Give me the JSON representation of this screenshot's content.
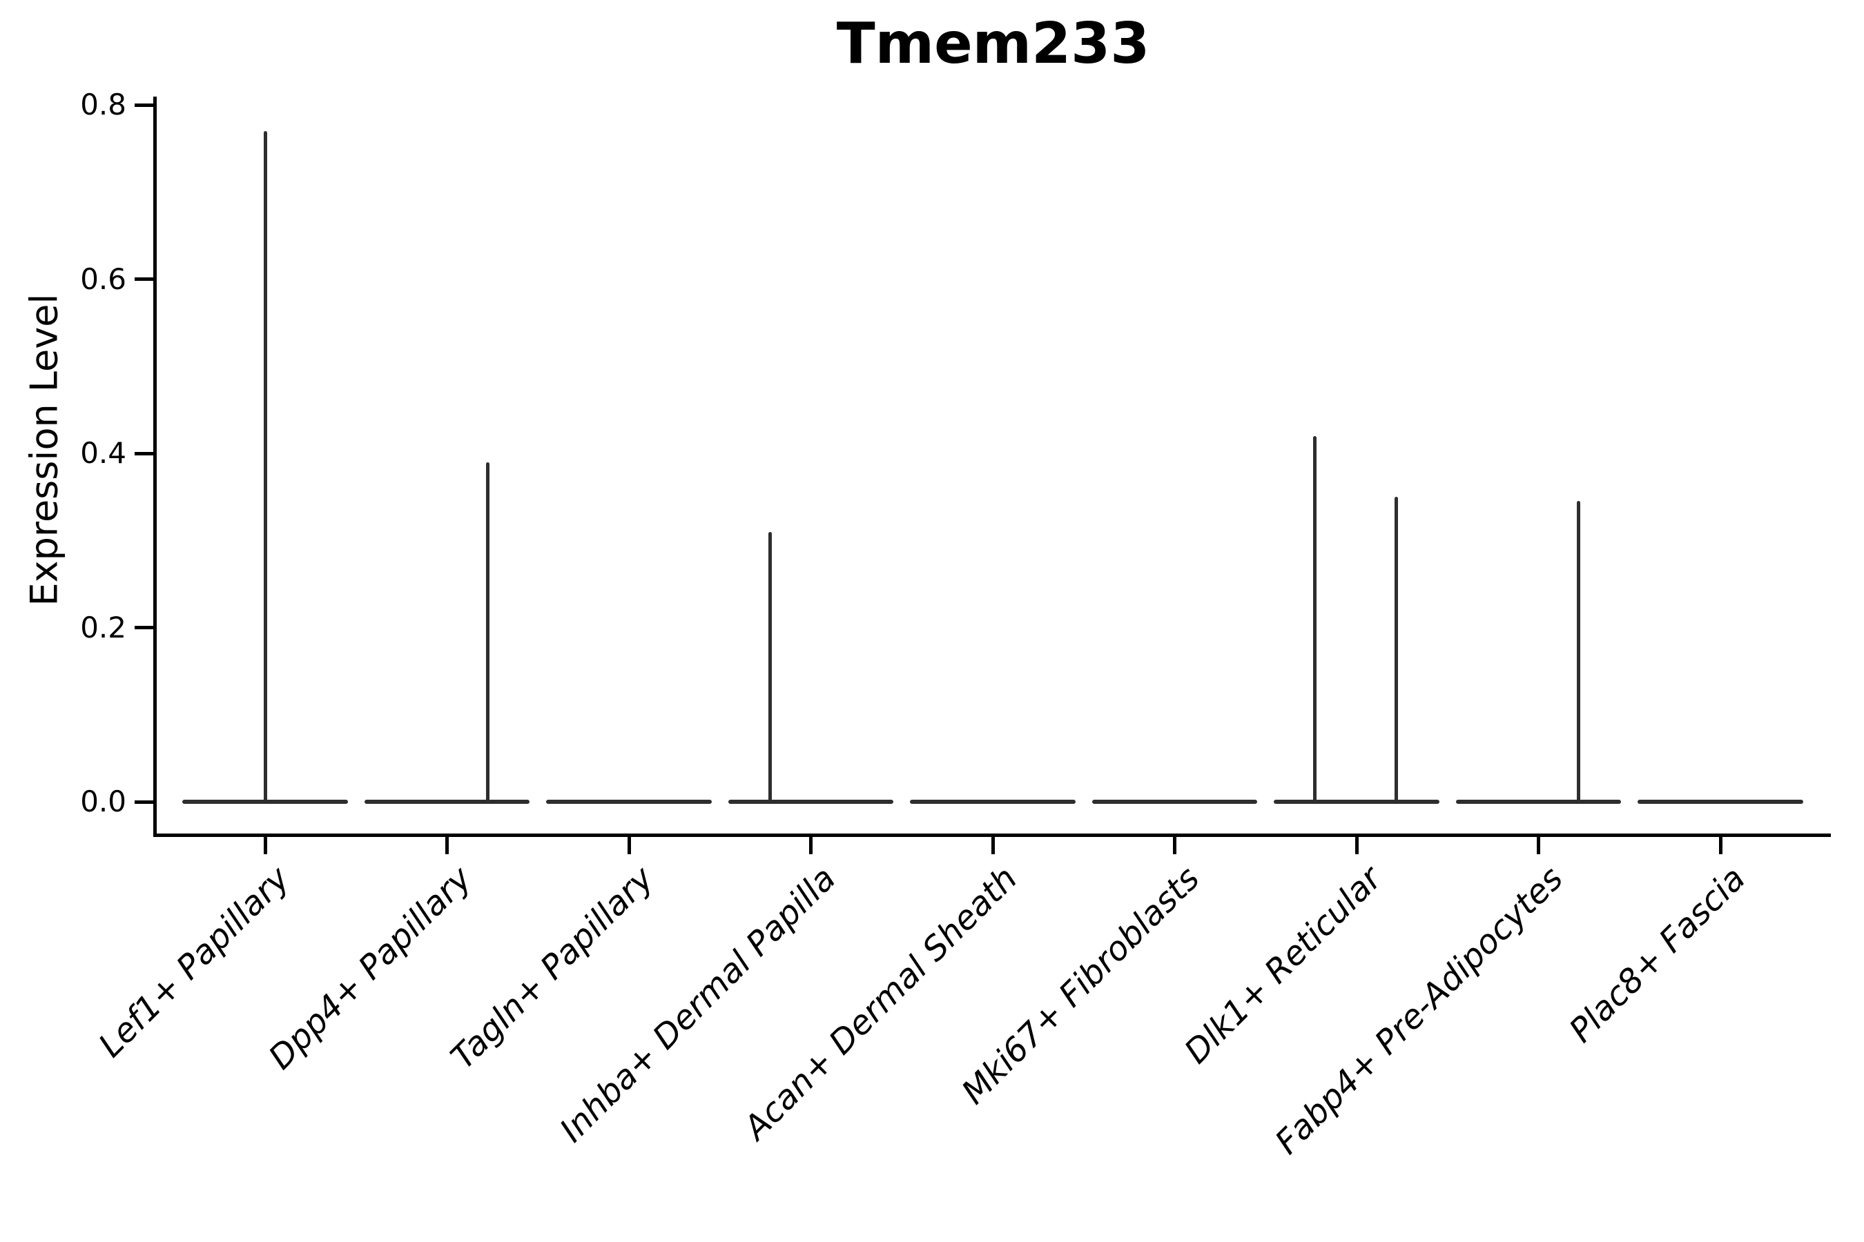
{
  "title": "Tmem233",
  "colors": {
    "violin_stroke": "#2e2e2e",
    "axis": "#000000",
    "text": "#000000",
    "background": "#ffffff"
  },
  "chart_data": {
    "type": "violin",
    "title": "Tmem233",
    "xlabel": "",
    "ylabel": "Expression Level",
    "ylim": [
      0,
      0.8
    ],
    "yticks": [
      0.0,
      0.2,
      0.4,
      0.6,
      0.8
    ],
    "ytick_labels": [
      "0.0",
      "0.2",
      "0.4",
      "0.6",
      "0.8"
    ],
    "grid": false,
    "legend": false,
    "categories": [
      "Lef1+ Papillary",
      "Dpp4+ Papillary",
      "Tagln+ Papillary",
      "Inhba+ Dermal Papilla",
      "Acan+ Dermal Sheath",
      "Mki67+ Fibroblasts",
      "Dlk1+ Reticular",
      "Fabp4+ Pre-Adipocytes",
      "Plac8+ Fascia"
    ],
    "violin_width_fraction": 0.91,
    "violins": [
      {
        "category": "Lef1+ Papillary",
        "baseline_value": 0,
        "spikes": [
          {
            "max": 0.77,
            "offset": 0.0
          }
        ]
      },
      {
        "category": "Dpp4+ Papillary",
        "baseline_value": 0,
        "spikes": [
          {
            "max": 0.39,
            "offset": 0.225
          }
        ]
      },
      {
        "category": "Tagln+ Papillary",
        "baseline_value": 0,
        "spikes": []
      },
      {
        "category": "Inhba+ Dermal Papilla",
        "baseline_value": 0,
        "spikes": [
          {
            "max": 0.31,
            "offset": -0.225
          }
        ]
      },
      {
        "category": "Acan+ Dermal Sheath",
        "baseline_value": 0,
        "spikes": []
      },
      {
        "category": "Mki67+ Fibroblasts",
        "baseline_value": 0,
        "spikes": []
      },
      {
        "category": "Dlk1+ Reticular",
        "baseline_value": 0,
        "spikes": [
          {
            "max": 0.42,
            "offset": -0.23
          },
          {
            "max": 0.35,
            "offset": 0.22
          }
        ]
      },
      {
        "category": "Fabp4+ Pre-Adipocytes",
        "baseline_value": 0,
        "spikes": [
          {
            "max": 0.345,
            "offset": 0.22
          }
        ]
      },
      {
        "category": "Plac8+ Fascia",
        "baseline_value": 0,
        "spikes": []
      }
    ]
  }
}
